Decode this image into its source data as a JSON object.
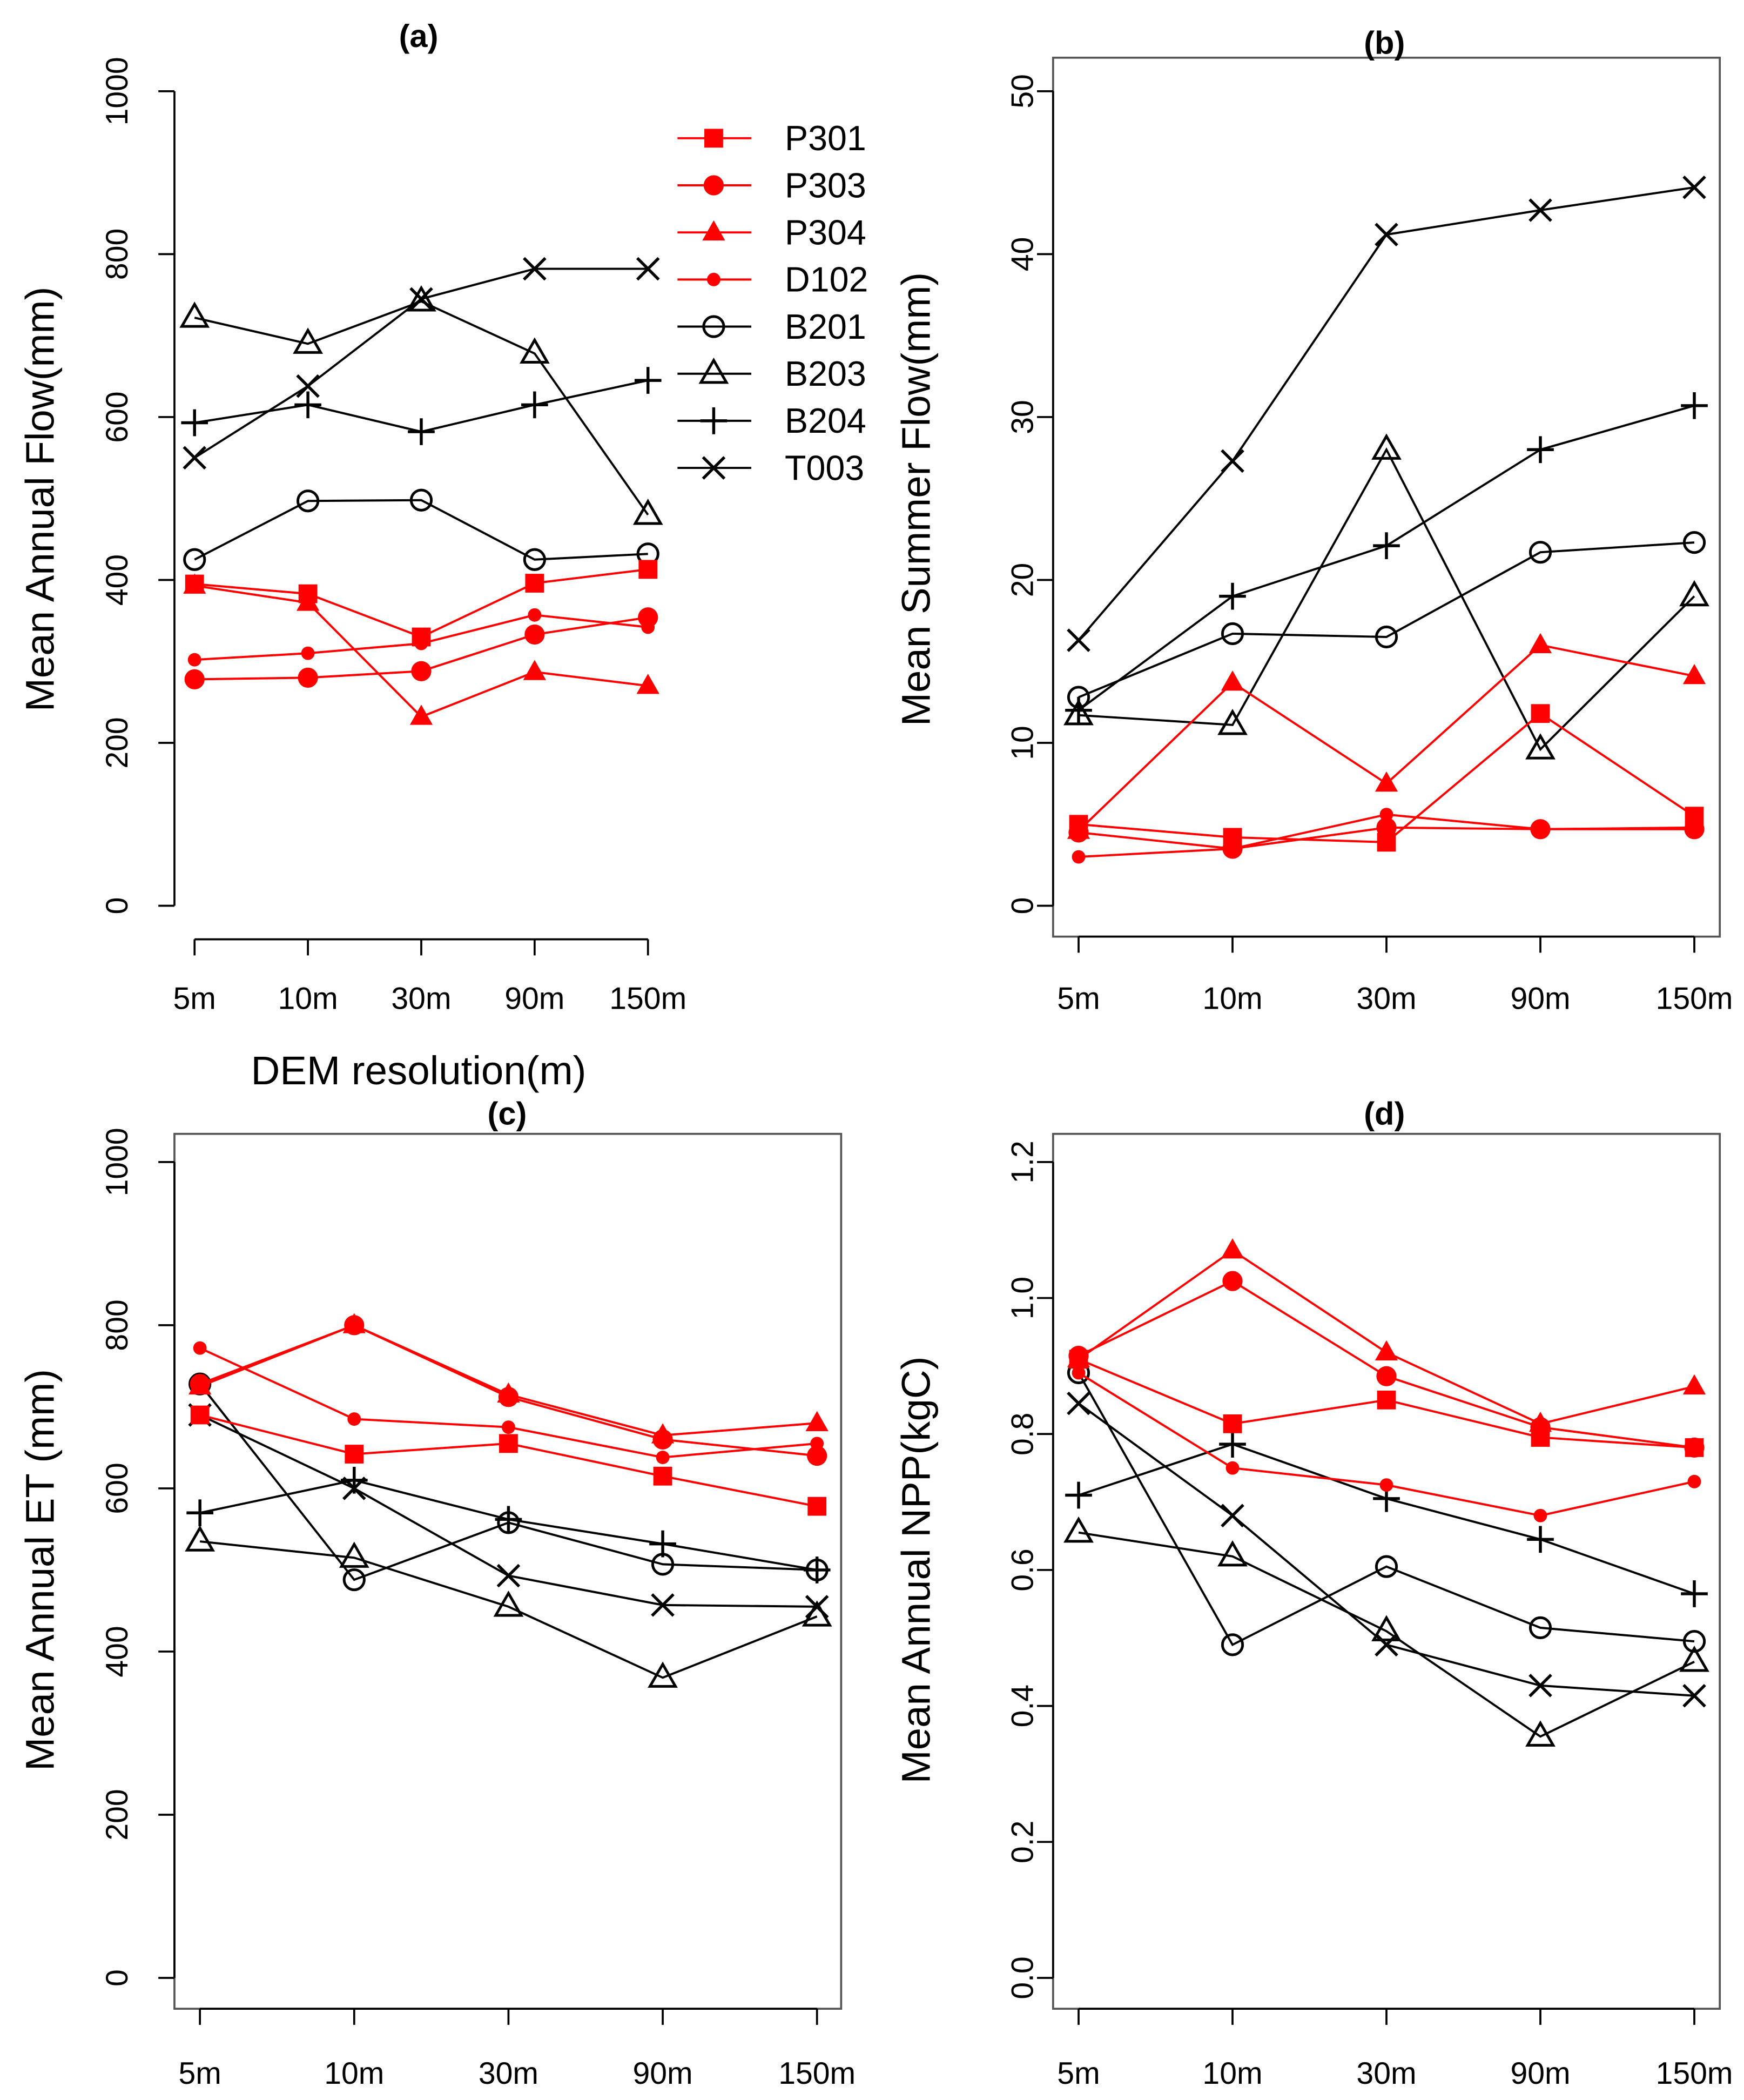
{
  "chart_data": [
    {
      "type": "line",
      "title": "(a)",
      "xlabel": "DEM resolution(m)",
      "ylabel": "Mean Annual Flow(mm)",
      "categories": [
        "5m",
        "10m",
        "30m",
        "90m",
        "150m"
      ],
      "ylim": [
        0,
        1000
      ],
      "yticks": [
        0,
        200,
        400,
        600,
        800,
        1000
      ],
      "legend_position": "top-right",
      "series": [
        {
          "name": "P301",
          "values": [
            395,
            383,
            330,
            396,
            413
          ]
        },
        {
          "name": "P303",
          "values": [
            278,
            280,
            288,
            333,
            354
          ]
        },
        {
          "name": "P304",
          "values": [
            393,
            372,
            232,
            287,
            270
          ]
        },
        {
          "name": "D102",
          "values": [
            302,
            310,
            322,
            357,
            342
          ]
        },
        {
          "name": "B201",
          "values": [
            425,
            497,
            498,
            425,
            432
          ]
        },
        {
          "name": "B203",
          "values": [
            722,
            690,
            742,
            678,
            480
          ]
        },
        {
          "name": "B204",
          "values": [
            593,
            615,
            582,
            615,
            645
          ]
        },
        {
          "name": "T003",
          "values": [
            550,
            638,
            745,
            782,
            782
          ]
        }
      ]
    },
    {
      "type": "line",
      "title": "(b)",
      "xlabel": "",
      "ylabel": "Mean Summer Flow(mm)",
      "categories": [
        "5m",
        "10m",
        "30m",
        "90m",
        "150m"
      ],
      "ylim": [
        0,
        50
      ],
      "yticks": [
        0,
        10,
        20,
        30,
        40,
        50
      ],
      "series": [
        {
          "name": "P301",
          "values": [
            5.0,
            4.2,
            3.9,
            11.8,
            5.5
          ]
        },
        {
          "name": "P303",
          "values": [
            4.5,
            3.5,
            4.8,
            4.7,
            4.7
          ]
        },
        {
          "name": "P304",
          "values": [
            4.6,
            13.7,
            7.5,
            16.0,
            14.1
          ]
        },
        {
          "name": "D102",
          "values": [
            3.0,
            3.5,
            5.6,
            4.7,
            4.8
          ]
        },
        {
          "name": "B201",
          "values": [
            12.8,
            16.7,
            16.5,
            21.7,
            22.3
          ]
        },
        {
          "name": "B203",
          "values": [
            11.7,
            11.1,
            28.0,
            9.6,
            19.0
          ]
        },
        {
          "name": "B204",
          "values": [
            12.0,
            19.0,
            22.1,
            28.0,
            30.7
          ]
        },
        {
          "name": "T003",
          "values": [
            16.3,
            27.3,
            41.2,
            42.7,
            44.1
          ]
        }
      ]
    },
    {
      "type": "line",
      "title": "(c)",
      "xlabel": "",
      "ylabel": "Mean Annual ET (mm)",
      "categories": [
        "5m",
        "10m",
        "30m",
        "90m",
        "150m"
      ],
      "ylim": [
        0,
        1000
      ],
      "yticks": [
        0,
        200,
        400,
        600,
        800,
        1000
      ],
      "series": [
        {
          "name": "P301",
          "values": [
            690,
            642,
            655,
            615,
            578
          ]
        },
        {
          "name": "P303",
          "values": [
            728,
            800,
            712,
            660,
            640
          ]
        },
        {
          "name": "P304",
          "values": [
            725,
            800,
            715,
            665,
            680
          ]
        },
        {
          "name": "D102",
          "values": [
            772,
            685,
            675,
            638,
            655
          ]
        },
        {
          "name": "B201",
          "values": [
            728,
            488,
            558,
            507,
            500
          ]
        },
        {
          "name": "B203",
          "values": [
            535,
            515,
            455,
            368,
            443
          ]
        },
        {
          "name": "B204",
          "values": [
            570,
            610,
            562,
            532,
            500
          ]
        },
        {
          "name": "T003",
          "values": [
            690,
            600,
            493,
            457,
            455
          ]
        }
      ]
    },
    {
      "type": "line",
      "title": "(d)",
      "xlabel": "",
      "ylabel": "Mean Annual NPP(kgC)",
      "categories": [
        "5m",
        "10m",
        "30m",
        "90m",
        "150m"
      ],
      "ylim": [
        0,
        1.2
      ],
      "yticks": [
        "0.0",
        "0.2",
        "0.4",
        "0.6",
        "0.8",
        "1.0",
        "1.2"
      ],
      "series": [
        {
          "name": "P301",
          "values": [
            0.91,
            0.815,
            0.85,
            0.795,
            0.78
          ]
        },
        {
          "name": "P303",
          "values": [
            0.915,
            1.025,
            0.885,
            0.81,
            0.78
          ]
        },
        {
          "name": "P304",
          "values": [
            0.91,
            1.07,
            0.92,
            0.815,
            0.87
          ]
        },
        {
          "name": "D102",
          "values": [
            0.89,
            0.75,
            0.725,
            0.68,
            0.73
          ]
        },
        {
          "name": "B201",
          "values": [
            0.89,
            0.49,
            0.605,
            0.515,
            0.495
          ]
        },
        {
          "name": "B203",
          "values": [
            0.655,
            0.62,
            0.51,
            0.355,
            0.465
          ]
        },
        {
          "name": "B204",
          "values": [
            0.71,
            0.785,
            0.705,
            0.645,
            0.565
          ]
        },
        {
          "name": "T003",
          "values": [
            0.845,
            0.68,
            0.49,
            0.43,
            0.415
          ]
        }
      ]
    }
  ],
  "style": {
    "colors": {
      "P301": "#ff0000",
      "P303": "#ff0000",
      "P304": "#ff0000",
      "D102": "#ff0000",
      "B201": "#000000",
      "B203": "#000000",
      "B204": "#000000",
      "T003": "#000000"
    },
    "markers": {
      "P301": "square-filled",
      "P303": "circle-filled",
      "P304": "triangle-filled",
      "D102": "small-circle-filled",
      "B201": "circle-open",
      "B203": "triangle-open",
      "B204": "plus",
      "T003": "cross"
    }
  }
}
